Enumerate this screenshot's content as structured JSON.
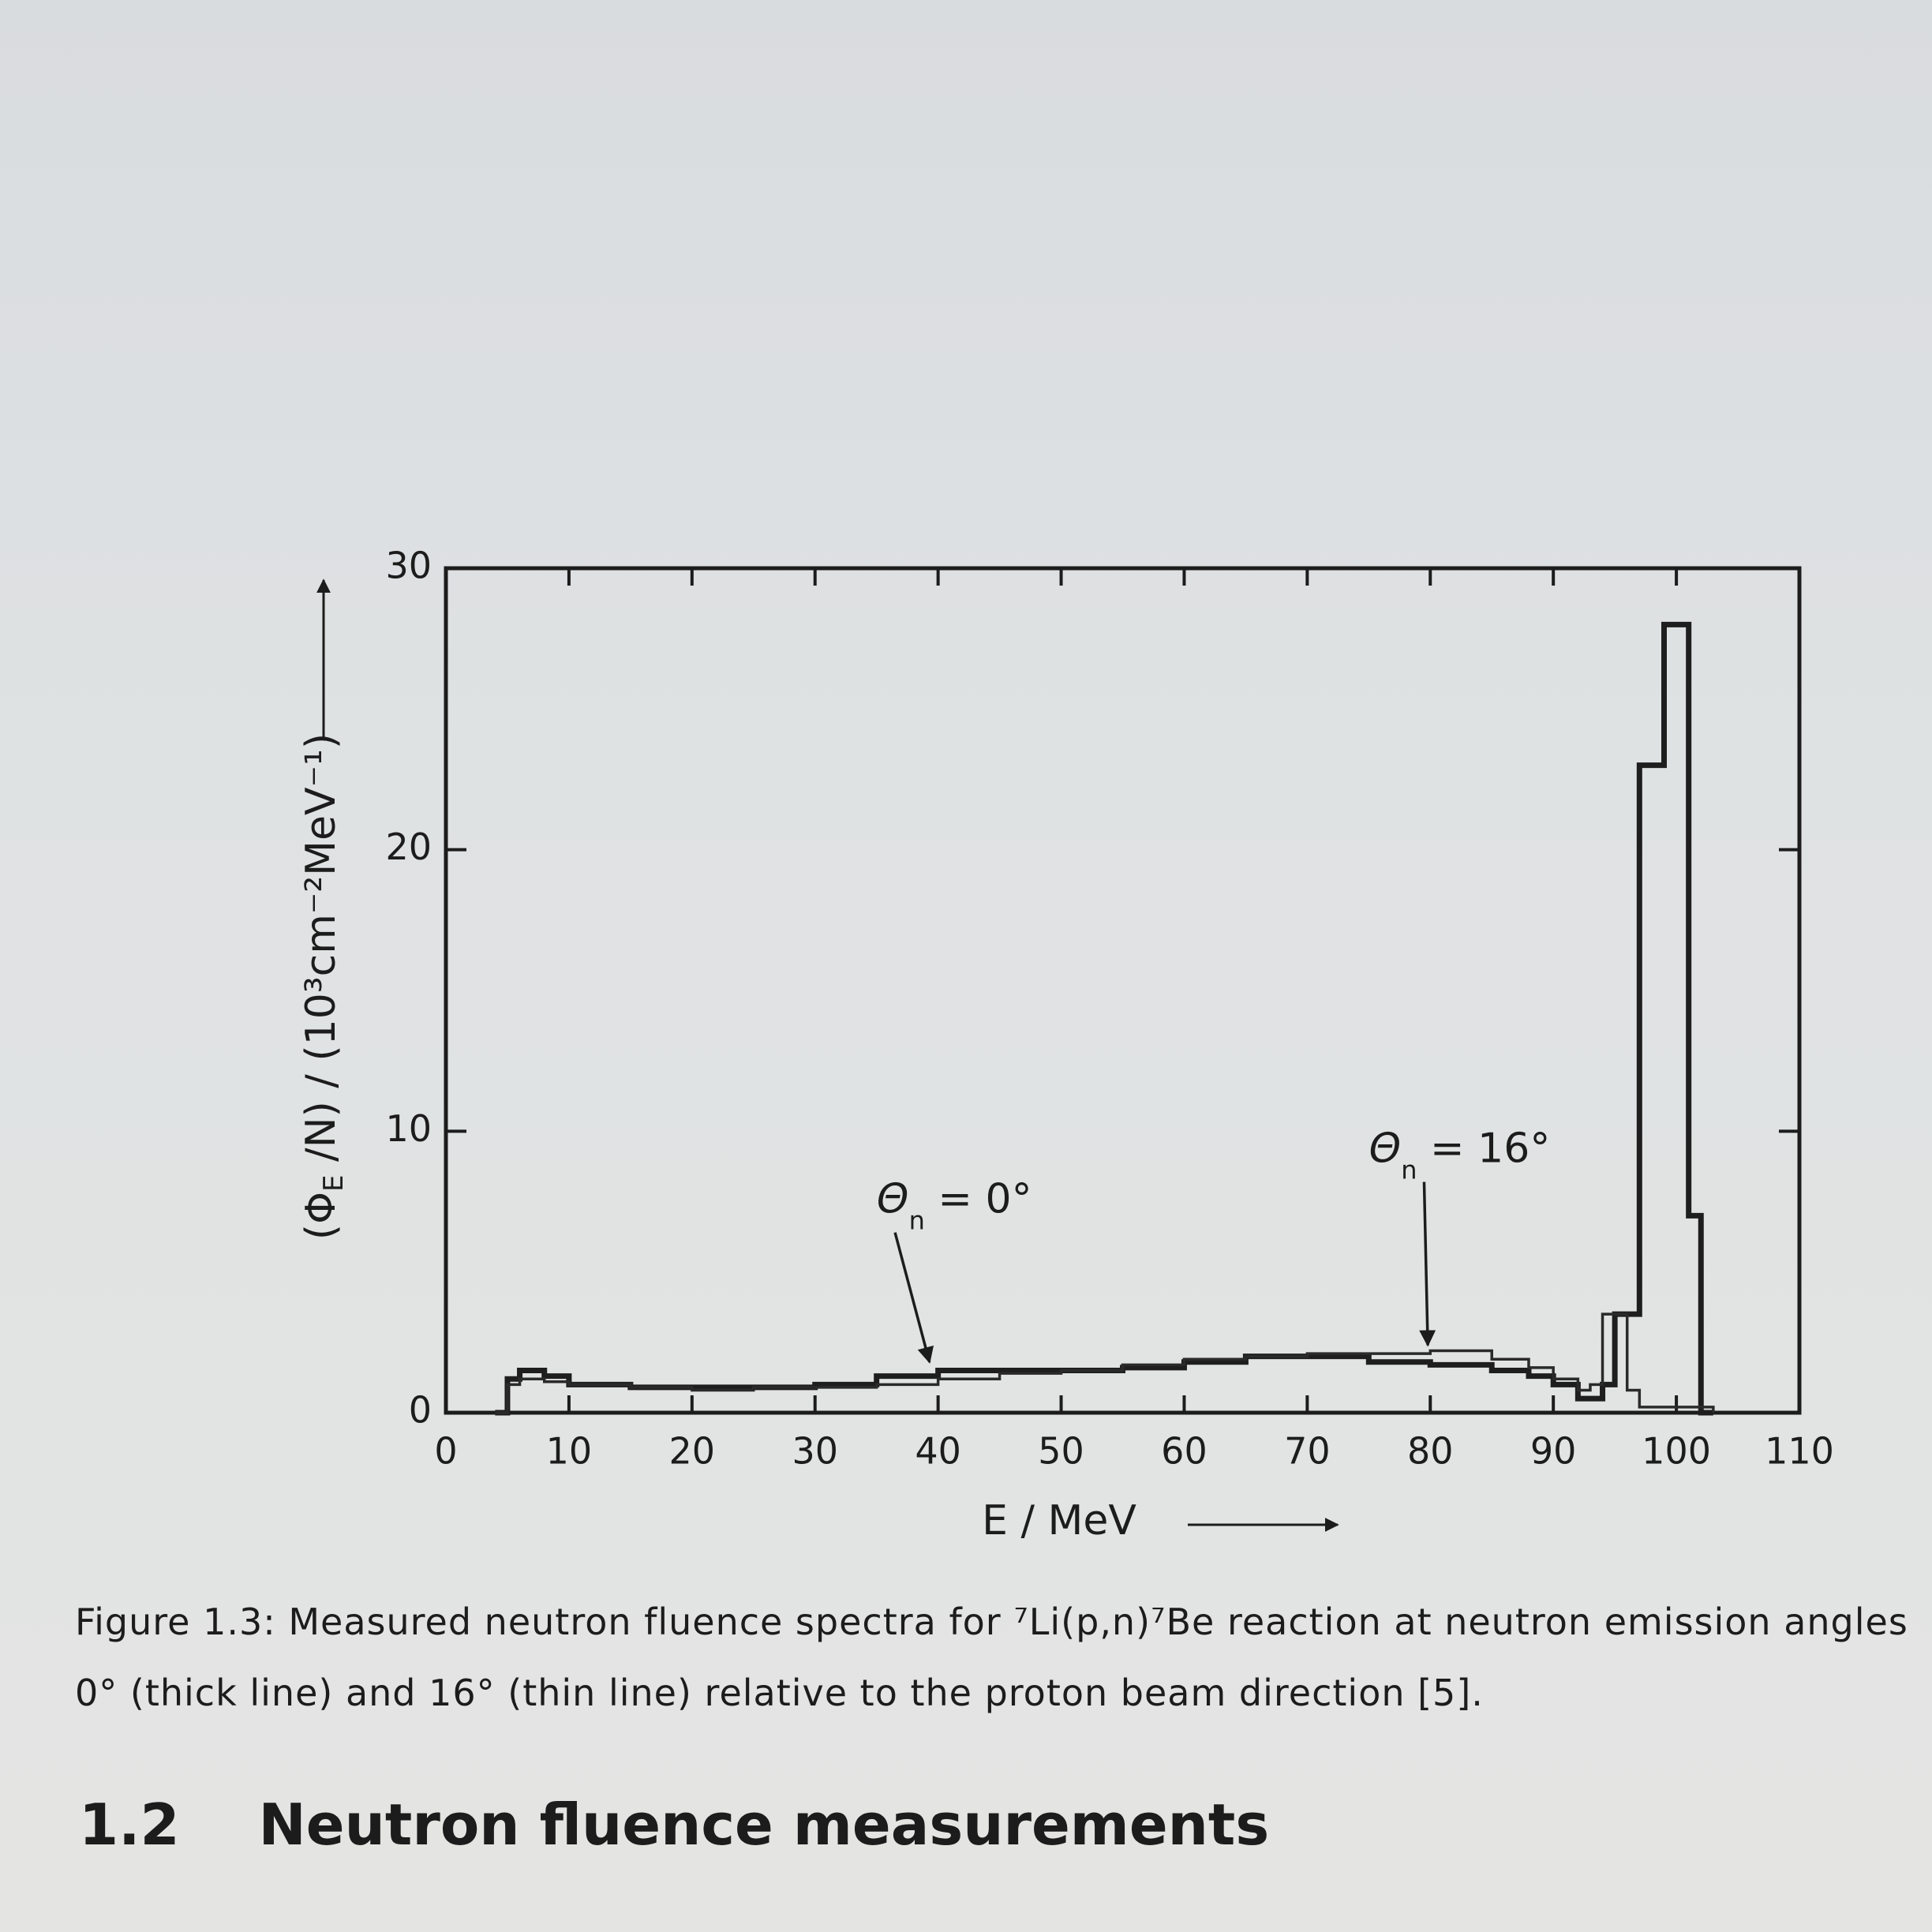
{
  "chart_data": {
    "type": "line",
    "step": "post",
    "x_label": "E / MeV",
    "y_label": {
      "open": "(Φ",
      "sub": "E",
      "rest": " /N) / (10³cm⁻²MeV⁻¹)"
    },
    "xlim": [
      0,
      110
    ],
    "xticks": [
      0,
      10,
      20,
      30,
      40,
      50,
      60,
      70,
      80,
      90,
      100,
      110
    ],
    "ylim": [
      0,
      30
    ],
    "yticks": [
      0,
      10,
      20,
      30
    ],
    "x": [
      4,
      5,
      6,
      8,
      10,
      15,
      20,
      25,
      30,
      35,
      40,
      45,
      50,
      55,
      60,
      65,
      70,
      75,
      80,
      85,
      88,
      90,
      92,
      93,
      94,
      95,
      96,
      97,
      98,
      99,
      100,
      101,
      102,
      103
    ],
    "series": [
      {
        "name": "0°",
        "color": "#1e1e1e",
        "width": 7,
        "values": [
          0,
          1.2,
          1.5,
          1.3,
          1.0,
          0.9,
          0.9,
          0.9,
          1.0,
          1.3,
          1.5,
          1.5,
          1.5,
          1.6,
          1.8,
          2.0,
          2.0,
          1.8,
          1.7,
          1.5,
          1.3,
          1.0,
          0.5,
          0.5,
          1.0,
          3.5,
          3.5,
          23,
          23,
          28,
          28,
          7,
          0,
          0
        ]
      },
      {
        "name": "16°",
        "color": "#2a2a2a",
        "width": 3.5,
        "values": [
          0,
          1.0,
          1.2,
          1.1,
          1.0,
          0.9,
          0.8,
          0.9,
          0.9,
          1.0,
          1.2,
          1.4,
          1.5,
          1.7,
          1.9,
          2.0,
          2.1,
          2.1,
          2.2,
          1.9,
          1.6,
          1.2,
          0.8,
          1.0,
          3.5,
          3.5,
          0.8,
          0.2,
          0.2,
          0.2,
          0.2,
          0.2,
          0.2,
          0
        ]
      }
    ],
    "annotations": [
      {
        "symbol": "Θ",
        "sub": "n",
        "text": " = 0°"
      },
      {
        "symbol": "Θ",
        "sub": "n",
        "text": " = 16°"
      }
    ]
  },
  "caption": "Figure 1.3: Measured neutron fluence spectra for ⁷Li(p,n)⁷Be reaction at neutron emission angles 0° (thick line) and 16° (thin line) relative to the proton beam direction [5].",
  "section": {
    "number": "1.2",
    "title": "Neutron fluence measurements"
  }
}
